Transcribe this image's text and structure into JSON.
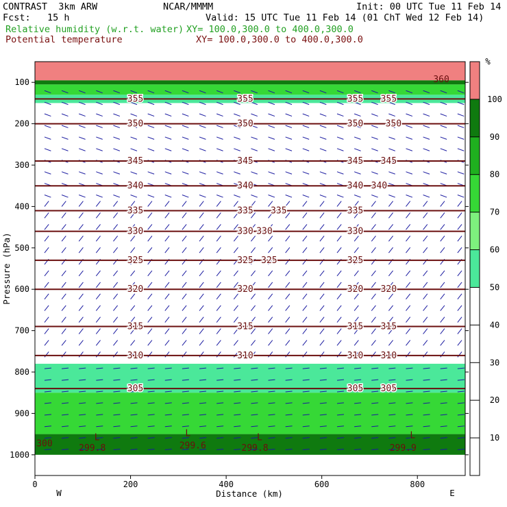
{
  "header": {
    "model": "CONTRAST  3km ARW",
    "org": "NCAR/MMMM",
    "init": "Init: 00 UTC Tue 11 Feb 14",
    "fcst": "Fcst:   15 h",
    "valid": "Valid: 15 UTC Tue 11 Feb 14 (01 ChT Wed 12 Feb 14)",
    "field1": "Relative humidity (w.r.t. water)",
    "field1_xy": "XY= 100.0,300.0 to 400.0,300.0",
    "field2": "Potential temperature",
    "field2_xy": "XY= 100.0,300.0 to 400.0,300.0"
  },
  "chart_data": {
    "type": "heatmap",
    "xlabel": "Distance (km)",
    "ylabel": "Pressure (hPa)",
    "xlim": [
      0,
      900
    ],
    "ylim": [
      1050,
      50
    ],
    "x_ticks": [
      0,
      200,
      400,
      600,
      800
    ],
    "y_ticks": [
      100,
      200,
      300,
      400,
      500,
      600,
      700,
      800,
      900,
      1000
    ],
    "x_end_labels": {
      "left": "W",
      "right": "E"
    },
    "colorbar": {
      "unit": "%",
      "levels": [
        10,
        20,
        30,
        40,
        50,
        60,
        70,
        80,
        90,
        100
      ],
      "bands": [
        {
          "from": 0,
          "to": 50,
          "color": "#ffffff"
        },
        {
          "from": 50,
          "to": 60,
          "color": "#4be89a"
        },
        {
          "from": 60,
          "to": 70,
          "color": "#7ef07e"
        },
        {
          "from": 70,
          "to": 80,
          "color": "#36d836"
        },
        {
          "from": 80,
          "to": 90,
          "color": "#1fb01f"
        },
        {
          "from": 90,
          "to": 100,
          "color": "#0f7a0f"
        },
        {
          "from": 100,
          "to": 110,
          "color": "#f08080"
        }
      ]
    },
    "rh_regions": [
      {
        "p_top": 130,
        "p_bot": 150,
        "rh": 55,
        "x": [
          0,
          900
        ]
      },
      {
        "p_top": 105,
        "p_bot": 130,
        "rh": 75,
        "x": [
          0,
          900
        ]
      },
      {
        "p_top": 95,
        "p_bot": 105,
        "rh": 95,
        "x": [
          0,
          900
        ]
      },
      {
        "p_top": 50,
        "p_bot": 95,
        "rh": 105,
        "x": [
          0,
          900
        ]
      },
      {
        "p_top": 780,
        "p_bot": 850,
        "rh": 55,
        "x": [
          0,
          900
        ]
      },
      {
        "p_top": 850,
        "p_bot": 950,
        "rh": 75,
        "x": [
          0,
          900
        ]
      },
      {
        "p_top": 950,
        "p_bot": 1000,
        "rh": 90,
        "x": [
          0,
          900
        ]
      }
    ],
    "theta_contours": [
      {
        "theta": 355,
        "p": 140,
        "labels_x": [
          210,
          440,
          670,
          740
        ]
      },
      {
        "theta": 350,
        "p": 200,
        "labels_x": [
          210,
          440,
          670,
          750
        ]
      },
      {
        "theta": 345,
        "p": 290,
        "labels_x": [
          210,
          440,
          670,
          740
        ]
      },
      {
        "theta": 340,
        "p": 350,
        "labels_x": [
          210,
          440,
          670,
          720
        ]
      },
      {
        "theta": 335,
        "p": 410,
        "labels_x": [
          210,
          440,
          510,
          670
        ]
      },
      {
        "theta": 330,
        "p": 460,
        "labels_x": [
          210,
          440,
          480,
          670
        ]
      },
      {
        "theta": 325,
        "p": 530,
        "labels_x": [
          210,
          440,
          490,
          670
        ]
      },
      {
        "theta": 320,
        "p": 600,
        "labels_x": [
          210,
          440,
          670,
          740
        ]
      },
      {
        "theta": 315,
        "p": 690,
        "labels_x": [
          210,
          440,
          670,
          740
        ]
      },
      {
        "theta": 310,
        "p": 760,
        "labels_x": [
          210,
          440,
          670,
          740
        ]
      },
      {
        "theta": 305,
        "p": 840,
        "labels_x": [
          210,
          670,
          740
        ]
      }
    ],
    "low_labels": [
      {
        "text": "300",
        "x": 20,
        "p": 980
      },
      {
        "text": "299.8",
        "x": 120,
        "p": 990
      },
      {
        "text": "299.6",
        "x": 330,
        "p": 985
      },
      {
        "text": "299.8",
        "x": 460,
        "p": 990
      },
      {
        "text": "299.9",
        "x": 770,
        "p": 990
      }
    ],
    "l_markers": [
      {
        "text": "L",
        "x": 130,
        "p": 965
      },
      {
        "text": "L",
        "x": 320,
        "p": 955
      },
      {
        "text": "L",
        "x": 470,
        "p": 965
      },
      {
        "text": "L",
        "x": 790,
        "p": 960
      }
    ],
    "top_label": {
      "text": "360",
      "x": 850,
      "p": 100
    }
  }
}
